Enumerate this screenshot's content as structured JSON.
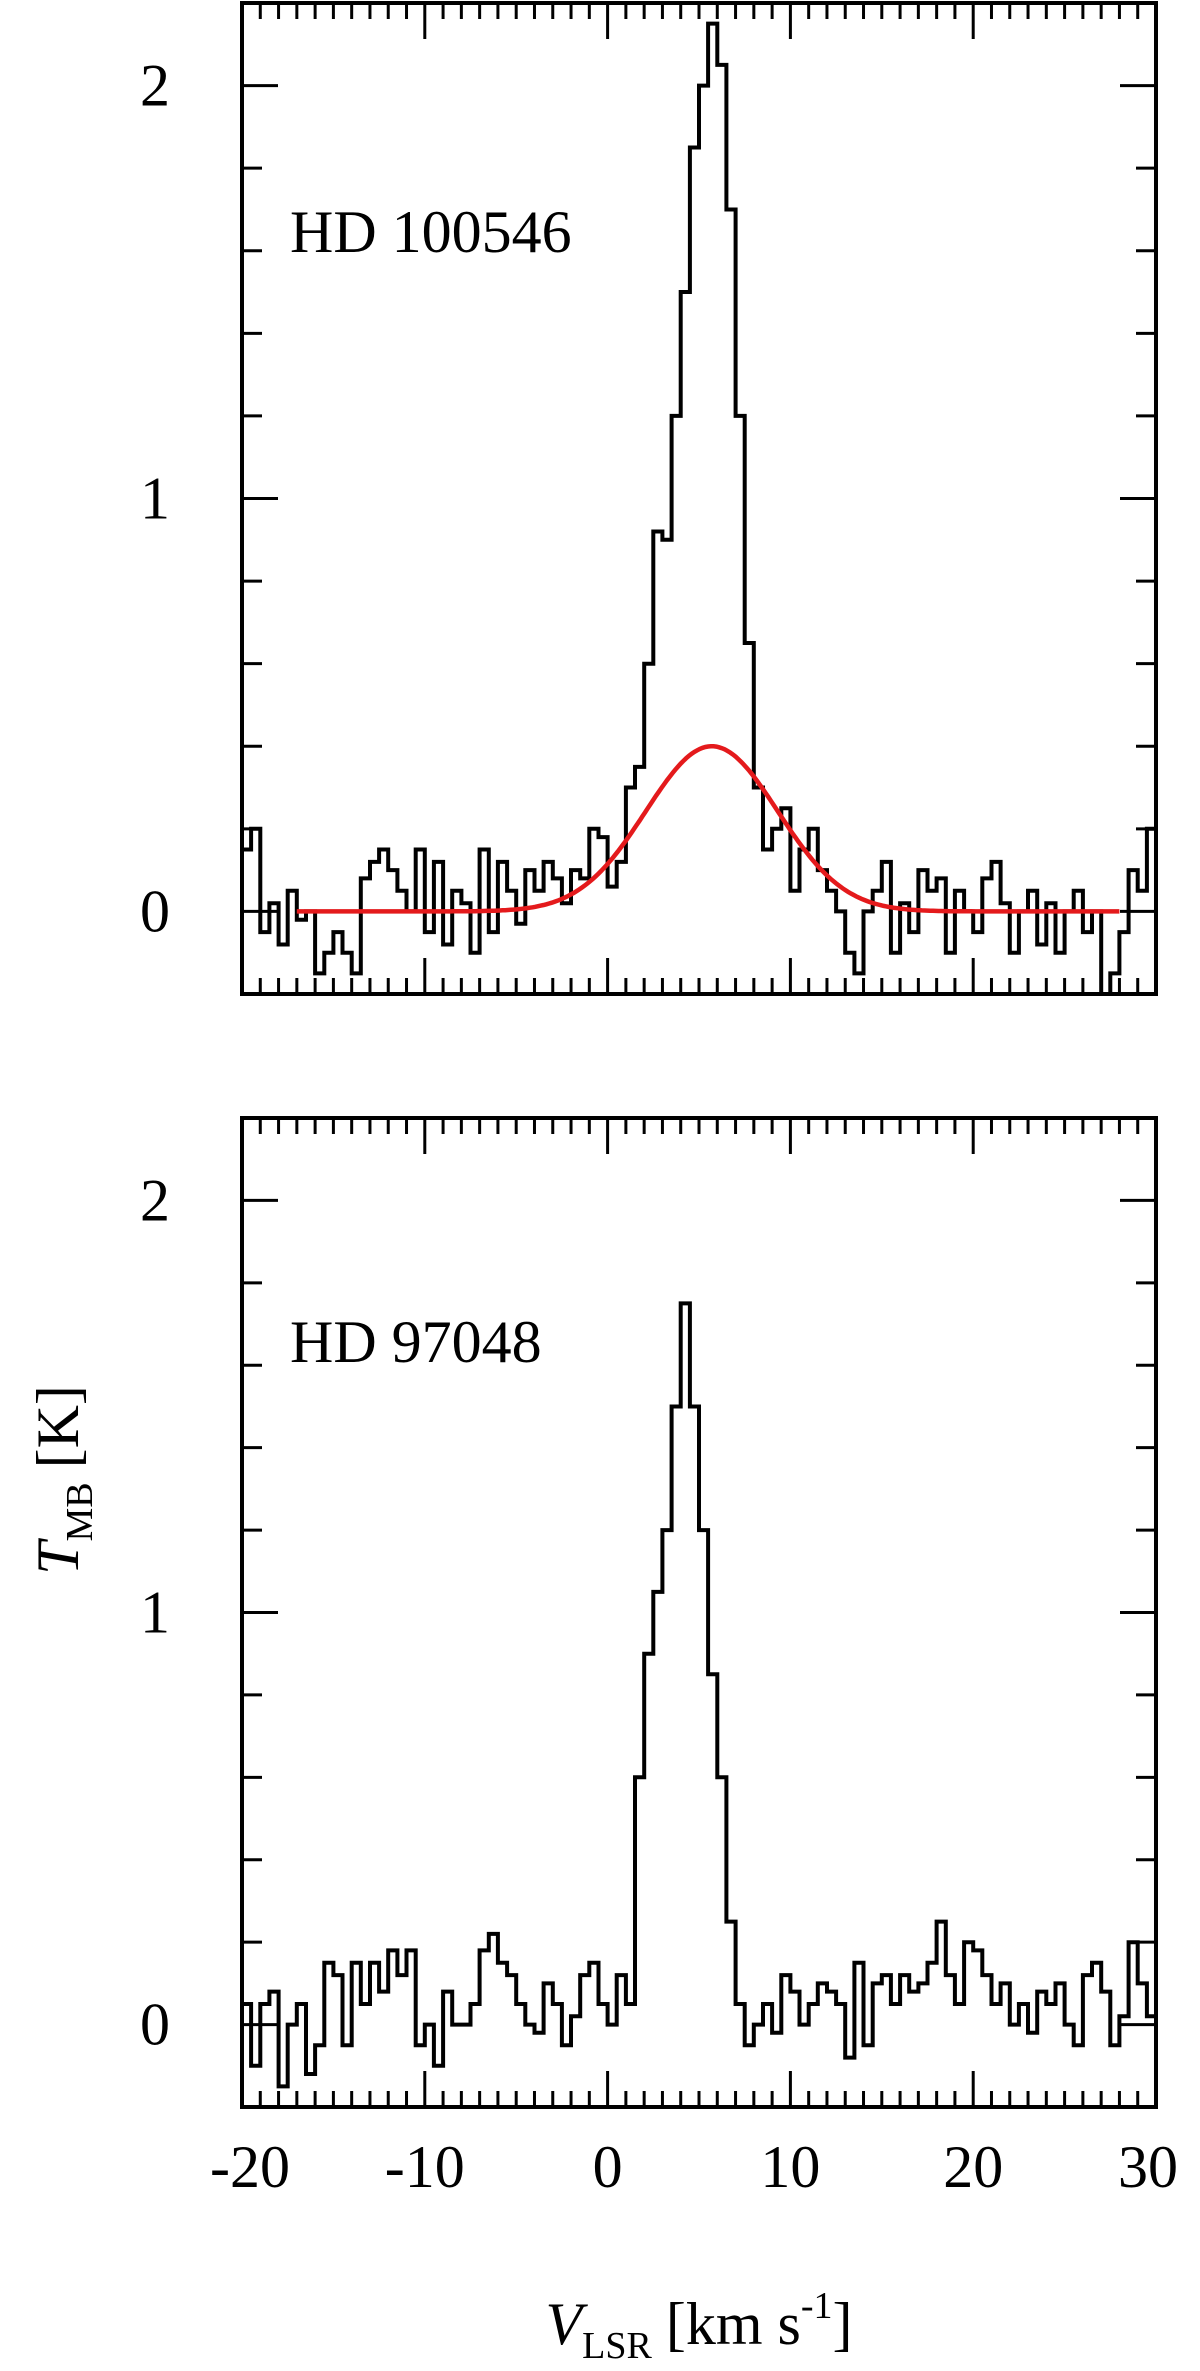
{
  "chart_data": [
    {
      "type": "line",
      "panel_label": "HD 100546",
      "x_range": [
        -20,
        30
      ],
      "y_range": [
        -0.2,
        2.2
      ],
      "x_ticks": [
        -20,
        -10,
        0,
        10,
        20,
        30
      ],
      "y_ticks": [
        0,
        1,
        2
      ],
      "series": [
        {
          "style": "step",
          "color": "#000000",
          "x": [
            -20,
            -19.5,
            -19,
            -18.5,
            -18,
            -17.5,
            -17,
            -16.5,
            -16,
            -15.5,
            -15,
            -14.5,
            -14,
            -13.5,
            -13,
            -12.5,
            -12,
            -11.5,
            -11,
            -10.5,
            -10,
            -9.5,
            -9,
            -8.5,
            -8,
            -7.5,
            -7,
            -6.5,
            -6,
            -5.5,
            -5,
            -4.5,
            -4,
            -3.5,
            -3,
            -2.5,
            -2,
            -1.5,
            -1,
            -0.5,
            0,
            0.5,
            1,
            1.5,
            2,
            2.5,
            3,
            3.5,
            4,
            4.5,
            5,
            5.5,
            6,
            6.5,
            7,
            7.5,
            8,
            8.5,
            9,
            9.5,
            10,
            10.5,
            11,
            11.5,
            12,
            12.5,
            13,
            13.5,
            14,
            14.5,
            15,
            15.5,
            16,
            16.5,
            17,
            17.5,
            18,
            18.5,
            19,
            19.5,
            20,
            20.5,
            21,
            21.5,
            22,
            22.5,
            23,
            23.5,
            24,
            24.5,
            25,
            25.5,
            26,
            26.5,
            27,
            27.5,
            28,
            28.5,
            29,
            29.5
          ],
          "values": [
            0.15,
            0.2,
            -0.05,
            0.02,
            -0.08,
            0.05,
            -0.02,
            0.0,
            -0.15,
            -0.1,
            -0.05,
            -0.1,
            -0.15,
            0.08,
            0.12,
            0.15,
            0.1,
            0.05,
            0.0,
            0.15,
            -0.05,
            0.12,
            -0.08,
            0.05,
            0.02,
            -0.1,
            0.15,
            -0.05,
            0.12,
            0.05,
            -0.03,
            0.1,
            0.05,
            0.12,
            0.08,
            0.02,
            0.1,
            0.08,
            0.2,
            0.18,
            0.06,
            0.12,
            0.3,
            0.35,
            0.6,
            0.92,
            0.9,
            1.2,
            1.5,
            1.85,
            2.0,
            2.15,
            2.05,
            1.7,
            1.2,
            0.65,
            0.3,
            0.15,
            0.2,
            0.25,
            0.05,
            0.15,
            0.2,
            0.1,
            0.05,
            0.0,
            -0.1,
            -0.15,
            0.0,
            0.05,
            0.12,
            -0.1,
            0.02,
            -0.05,
            0.1,
            0.05,
            0.08,
            -0.1,
            0.05,
            0.0,
            -0.05,
            0.08,
            0.12,
            0.02,
            -0.1,
            0.0,
            0.05,
            -0.08,
            0.02,
            -0.1,
            0.0,
            0.05,
            -0.05,
            0.0,
            -0.2,
            -0.15,
            -0.05,
            0.1,
            0.05,
            0.2
          ]
        },
        {
          "style": "smooth",
          "color": "#e41a1c",
          "function": "gaussian",
          "amplitude": 0.4,
          "center": 5.7,
          "fwhm": 8.5,
          "x_range": [
            -17,
            28
          ]
        }
      ]
    },
    {
      "type": "line",
      "panel_label": "HD 97048",
      "x_range": [
        -20,
        30
      ],
      "y_range": [
        -0.2,
        2.2
      ],
      "x_ticks": [
        -20,
        -10,
        0,
        10,
        20,
        30
      ],
      "y_ticks": [
        0,
        1,
        2
      ],
      "xlabel": "V",
      "xlabel_sub": "LSR",
      "xlabel_units": "[km s",
      "xlabel_sup": "-1",
      "xlabel_close": "]",
      "ylabel": "T",
      "ylabel_sub": "MB",
      "ylabel_units": "[K]",
      "series": [
        {
          "style": "step",
          "color": "#000000",
          "x": [
            -20,
            -19.5,
            -19,
            -18.5,
            -18,
            -17.5,
            -17,
            -16.5,
            -16,
            -15.5,
            -15,
            -14.5,
            -14,
            -13.5,
            -13,
            -12.5,
            -12,
            -11.5,
            -11,
            -10.5,
            -10,
            -9.5,
            -9,
            -8.5,
            -8,
            -7.5,
            -7,
            -6.5,
            -6,
            -5.5,
            -5,
            -4.5,
            -4,
            -3.5,
            -3,
            -2.5,
            -2,
            -1.5,
            -1,
            -0.5,
            0,
            0.5,
            1,
            1.5,
            2,
            2.5,
            3,
            3.5,
            4,
            4.5,
            5,
            5.5,
            6,
            6.5,
            7,
            7.5,
            8,
            8.5,
            9,
            9.5,
            10,
            10.5,
            11,
            11.5,
            12,
            12.5,
            13,
            13.5,
            14,
            14.5,
            15,
            15.5,
            16,
            16.5,
            17,
            17.5,
            18,
            18.5,
            19,
            19.5,
            20,
            20.5,
            21,
            21.5,
            22,
            22.5,
            23,
            23.5,
            24,
            24.5,
            25,
            25.5,
            26,
            26.5,
            27,
            27.5,
            28,
            28.5,
            29,
            29.5
          ],
          "values": [
            0.05,
            -0.1,
            0.05,
            0.08,
            -0.15,
            0.0,
            0.05,
            -0.12,
            -0.05,
            0.15,
            0.12,
            -0.05,
            0.15,
            0.05,
            0.15,
            0.08,
            0.18,
            0.12,
            0.18,
            -0.05,
            0.0,
            -0.1,
            0.08,
            0.0,
            0.0,
            0.05,
            0.18,
            0.22,
            0.15,
            0.12,
            0.05,
            0.0,
            -0.02,
            0.1,
            0.05,
            -0.05,
            0.02,
            0.12,
            0.15,
            0.05,
            0.0,
            0.12,
            0.05,
            0.6,
            0.9,
            1.05,
            1.2,
            1.5,
            1.75,
            1.5,
            1.2,
            0.85,
            0.6,
            0.25,
            0.05,
            -0.05,
            0.0,
            0.05,
            -0.02,
            0.12,
            0.08,
            0.0,
            0.05,
            0.1,
            0.08,
            0.05,
            -0.08,
            0.15,
            -0.05,
            0.1,
            0.12,
            0.05,
            0.12,
            0.08,
            0.1,
            0.15,
            0.25,
            0.12,
            0.05,
            0.2,
            0.18,
            0.12,
            0.05,
            0.1,
            0.0,
            0.05,
            -0.02,
            0.08,
            0.05,
            0.1,
            0.0,
            -0.05,
            0.12,
            0.15,
            0.08,
            -0.05,
            0.02,
            0.2,
            0.1,
            0.02
          ]
        }
      ]
    }
  ]
}
